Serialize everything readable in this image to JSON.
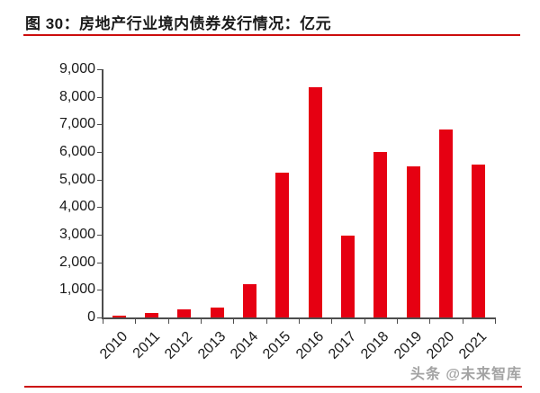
{
  "header": {
    "title": "图 30：房地产行业境内债券发行情况：亿元"
  },
  "watermark": {
    "text": "头条 @未来智库"
  },
  "colors": {
    "bar": "#e60012",
    "rule": "#cc0d0d",
    "axis": "#4d4d4d",
    "text": "#1a1a1a",
    "watermark": "#a3a3a3"
  },
  "chart_data": {
    "type": "bar",
    "title": "图 30：房地产行业境内债券发行情况：亿元",
    "categories": [
      "2010",
      "2011",
      "2012",
      "2013",
      "2014",
      "2015",
      "2016",
      "2017",
      "2018",
      "2019",
      "2020",
      "2021"
    ],
    "values": [
      80,
      150,
      280,
      370,
      1220,
      5240,
      8350,
      2960,
      6000,
      5490,
      6800,
      5550
    ],
    "xlabel": "",
    "ylabel": "",
    "ylim": [
      0,
      9000
    ],
    "ytick_step": 1000,
    "ytick_labels": [
      "0",
      "1,000",
      "2,000",
      "3,000",
      "4,000",
      "5,000",
      "6,000",
      "7,000",
      "8,000",
      "9,000"
    ],
    "grid": false,
    "legend": "none",
    "bar_color": "#e60012"
  }
}
